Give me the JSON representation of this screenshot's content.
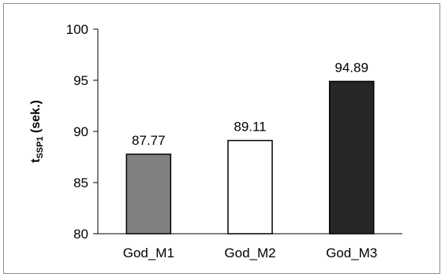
{
  "chart_data": {
    "type": "bar",
    "title": "",
    "xlabel": "",
    "ylabel_main": "t",
    "ylabel_sub": "SSP1",
    "ylabel_rest": " (sek.)",
    "categories": [
      "God_M1",
      "God_M2",
      "God_M3"
    ],
    "values": [
      87.77,
      89.11,
      94.89
    ],
    "data_labels": [
      "87.77",
      "89.11",
      "94.89"
    ],
    "ylim": [
      80,
      100
    ],
    "yticks": [
      80,
      85,
      90,
      95,
      100
    ],
    "ytick_labels": [
      "80",
      "85",
      "90",
      "95",
      "100"
    ],
    "bar_colors": [
      "#808080",
      "#ffffff",
      "#262626"
    ],
    "bar_edge_color": "#000000",
    "grid": false,
    "legend": "none"
  }
}
